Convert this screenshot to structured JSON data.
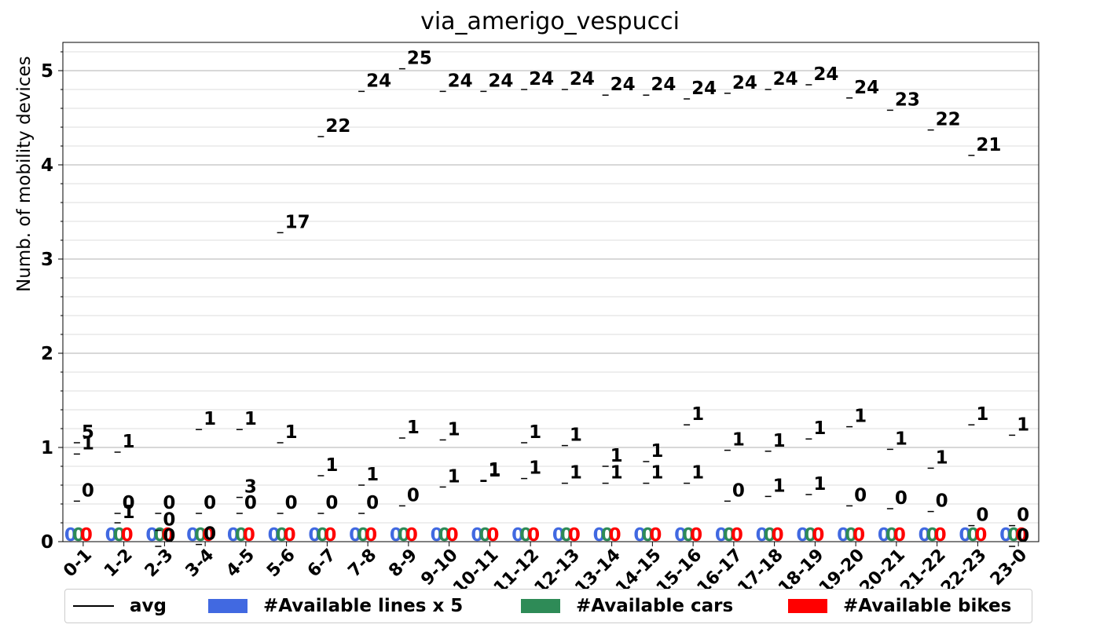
{
  "chart_data": {
    "type": "line",
    "title": "via_amerigo_vespucci",
    "ylabel": "Numb. of mobility devices",
    "xlabel": "",
    "ylim": [
      0,
      5.3
    ],
    "yticks": [
      "0",
      "1",
      "2",
      "3",
      "4",
      "5"
    ],
    "grid": true,
    "legend_position": "bottom",
    "categories": [
      "0-1",
      "1-2",
      "2-3",
      "3-4",
      "4-5",
      "5-6",
      "6-7",
      "7-8",
      "8-9",
      "9-10",
      "10-11",
      "11-12",
      "12-13",
      "13-14",
      "14-15",
      "15-16",
      "16-17",
      "17-18",
      "18-19",
      "19-20",
      "20-21",
      "21-22",
      "22-23",
      "23-0"
    ],
    "series": [
      {
        "name": "#Available lines x 5",
        "color": "#4169E1",
        "values": [
          1.1,
          0.25,
          0.0,
          0.02,
          0.52,
          3.33,
          4.35,
          4.83,
          5.07,
          4.83,
          4.83,
          4.85,
          4.85,
          4.79,
          4.79,
          4.75,
          4.81,
          4.85,
          4.9,
          4.76,
          4.63,
          4.42,
          4.15,
          0.0
        ],
        "labels": [
          "5",
          "1",
          "0",
          "0",
          "3",
          "17",
          "22",
          "24",
          "25",
          "24",
          "24",
          "24",
          "24",
          "24",
          "24",
          "24",
          "24",
          "24",
          "24",
          "24",
          "23",
          "22",
          "21",
          "0"
        ]
      },
      {
        "name": "#Available cars",
        "color": "#2E8B57",
        "values": [
          0.48,
          0.35,
          0.35,
          0.35,
          0.35,
          0.35,
          0.35,
          0.35,
          0.43,
          0.63,
          0.69,
          0.72,
          0.67,
          0.67,
          0.67,
          0.67,
          0.48,
          0.53,
          0.55,
          0.43,
          0.4,
          0.37,
          0.22,
          0.22
        ],
        "labels": [
          "0",
          "0",
          "0",
          "0",
          "0",
          "0",
          "0",
          "0",
          "0",
          "1",
          "1",
          "1",
          "1",
          "1",
          "1",
          "1",
          "0",
          "1",
          "1",
          "0",
          "0",
          "0",
          "0",
          "0"
        ]
      },
      {
        "name": "#Available bikes",
        "color": "#FF0000",
        "values": [
          0.98,
          1.0,
          0.17,
          1.24,
          1.24,
          1.1,
          0.75,
          0.65,
          1.15,
          1.13,
          0.7,
          1.1,
          1.07,
          0.85,
          0.9,
          1.29,
          1.02,
          1.01,
          1.14,
          1.27,
          1.03,
          0.83,
          1.29,
          1.18
        ],
        "labels": [
          "1",
          "1",
          "0",
          "1",
          "1",
          "1",
          "1",
          "1",
          "1",
          "1",
          "1",
          "1",
          "1",
          "1",
          "1",
          "1",
          "1",
          "1",
          "1",
          "1",
          "1",
          "1",
          "1",
          "1"
        ]
      }
    ],
    "bar_series_values": {
      "#Available lines x 5": [
        0,
        0,
        0,
        0,
        0,
        0,
        0,
        0,
        0,
        0,
        0,
        0,
        0,
        0,
        0,
        0,
        0,
        0,
        0,
        0,
        0,
        0,
        0,
        0
      ],
      "#Available cars": [
        0,
        0,
        0,
        0,
        0,
        0,
        0,
        0,
        0,
        0,
        0,
        0,
        0,
        0,
        0,
        0,
        0,
        0,
        0,
        0,
        0,
        0,
        0,
        0
      ],
      "#Available bikes": [
        0,
        0,
        0,
        0,
        0,
        0,
        0,
        0,
        0,
        0,
        0,
        0,
        0,
        0,
        0,
        0,
        0,
        0,
        0,
        0,
        0,
        0,
        0,
        0
      ]
    },
    "bar_labels": [
      "0",
      "0",
      "0"
    ],
    "avg_color": "#000000"
  },
  "legend": {
    "avg": "avg",
    "lines": "#Available lines x 5",
    "cars": "#Available cars",
    "bikes": "#Available bikes"
  }
}
